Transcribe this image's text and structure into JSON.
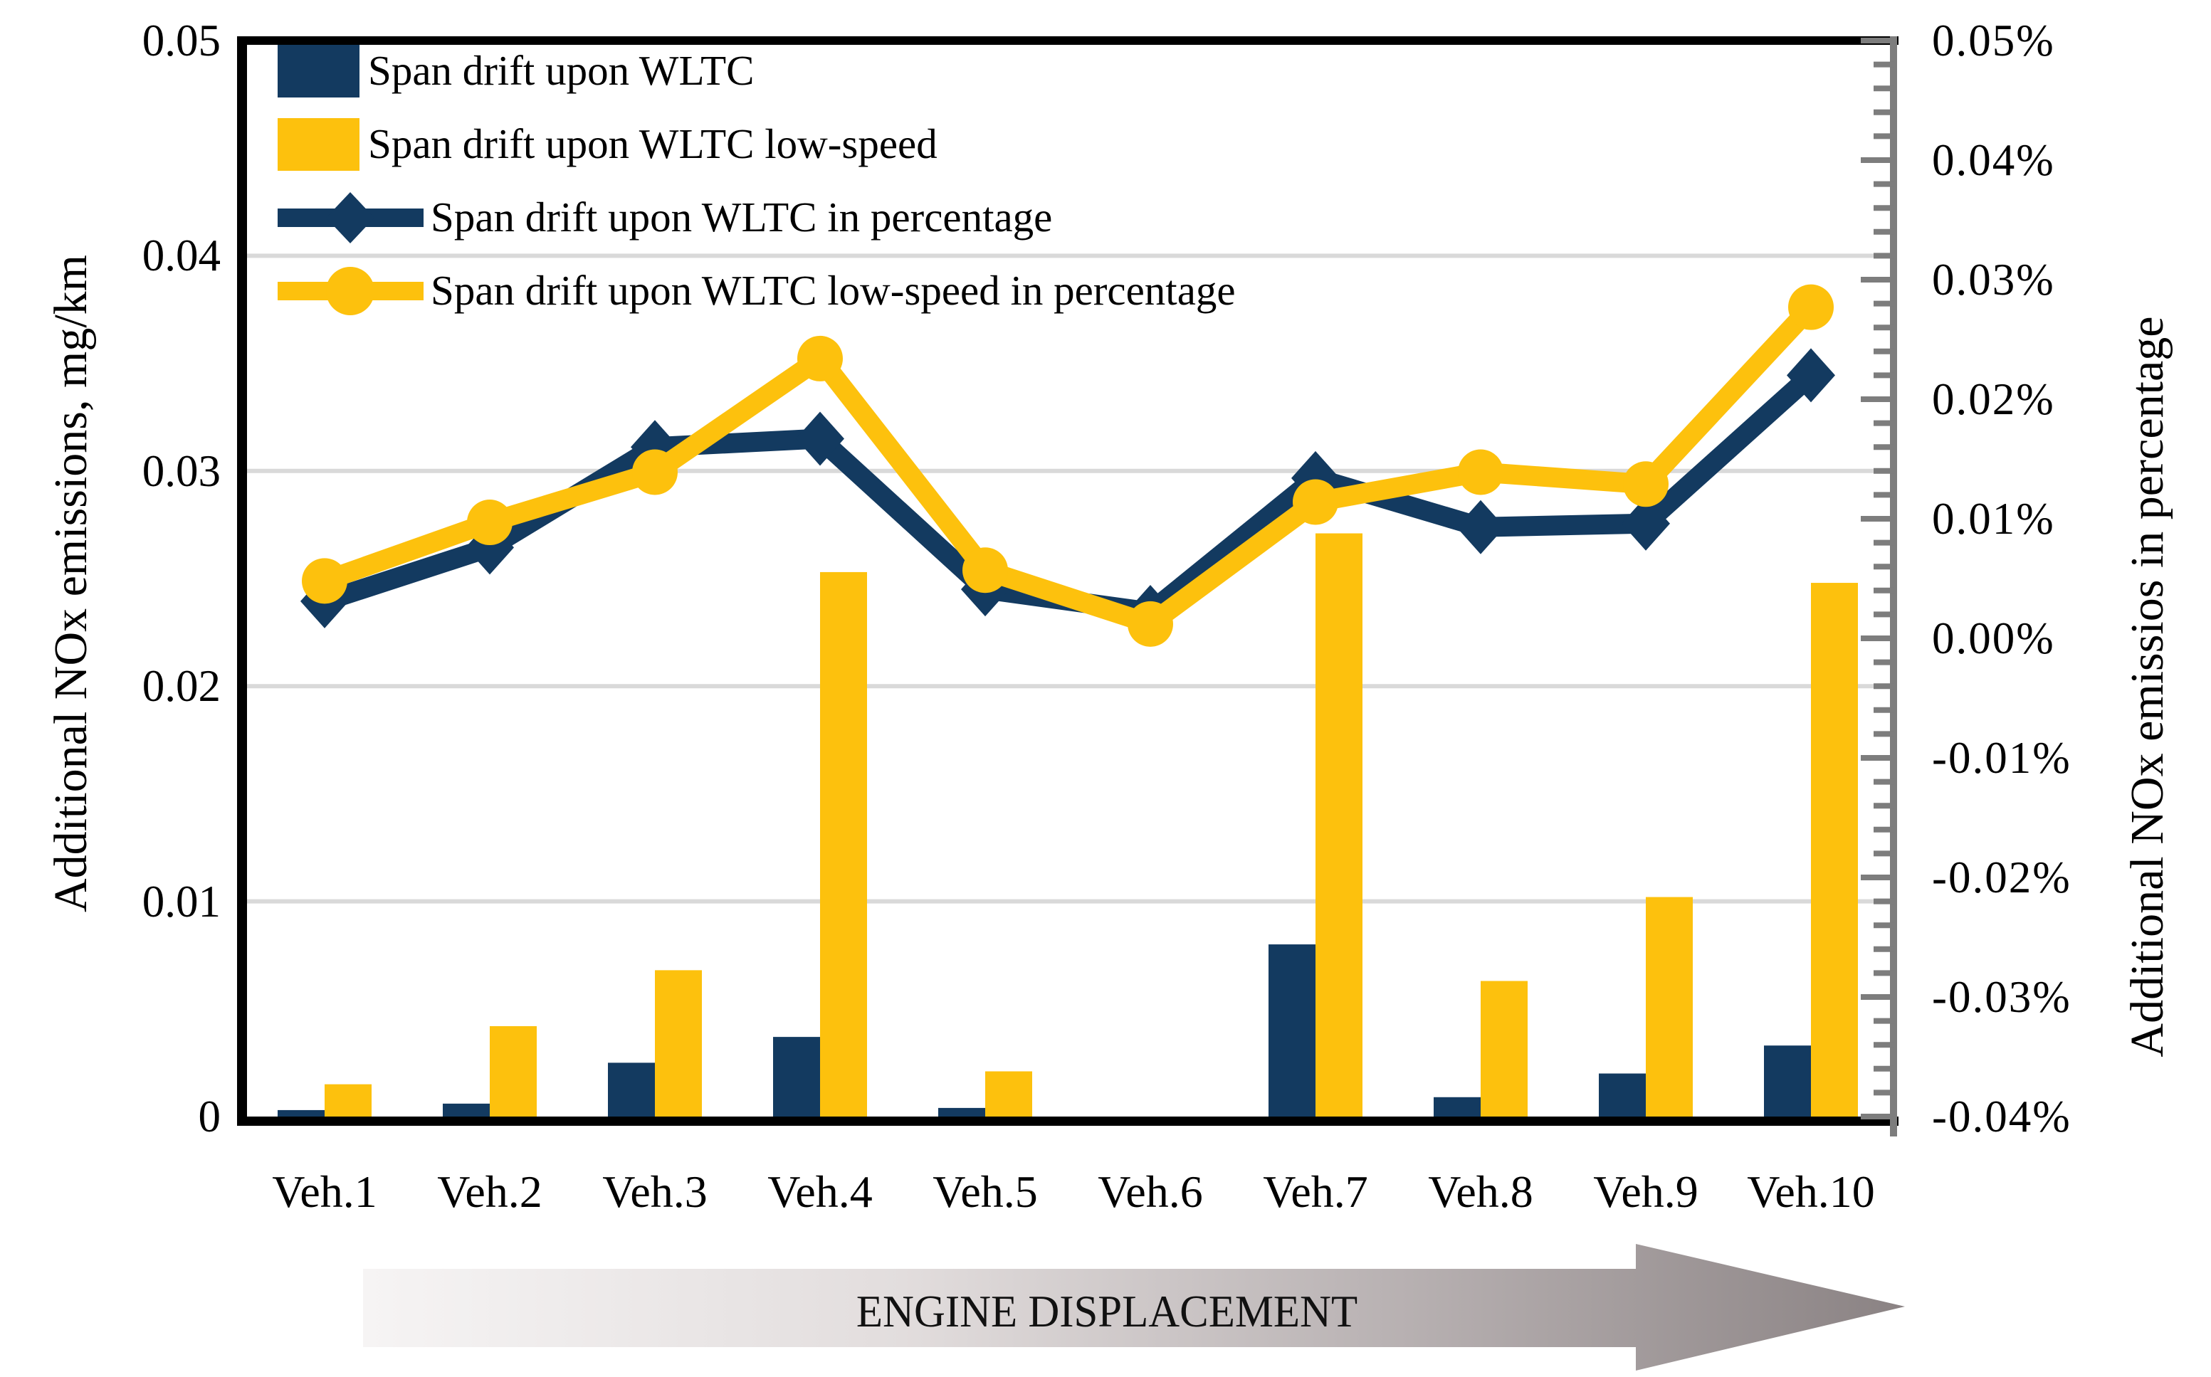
{
  "chart_data": {
    "type": "bar",
    "subtype": "combo-bar-line-dual-axis",
    "categories": [
      "Veh.1",
      "Veh.2",
      "Veh.3",
      "Veh.4",
      "Veh.5",
      "Veh.6",
      "Veh.7",
      "Veh.8",
      "Veh.9",
      "Veh.10"
    ],
    "series": [
      {
        "name": "Span drift upon WLTC",
        "type": "bar",
        "axis": "left",
        "marker": "square",
        "color": "#133A60",
        "values": [
          0.0003,
          0.0006,
          0.0025,
          0.0037,
          0.0004,
          0,
          0.008,
          0.0009,
          0.002,
          0.0033
        ]
      },
      {
        "name": "Span drift upon WLTC low-speed",
        "type": "bar",
        "axis": "left",
        "marker": "square",
        "color": "#FDC10D",
        "values": [
          0.0015,
          0.0042,
          0.0068,
          0.0253,
          0.0021,
          0,
          0.0271,
          0.0063,
          0.0102,
          0.0248
        ]
      },
      {
        "name": "Span drift upon WLTC in percentage",
        "type": "line",
        "axis": "right",
        "marker": "diamond",
        "color": "#133A60",
        "values": [
          0.0031,
          0.0076,
          0.016,
          0.0167,
          0.0041,
          0.0022,
          0.0134,
          0.0093,
          0.0096,
          0.022
        ]
      },
      {
        "name": "Span drift upon WLTC low-speed in percentage",
        "type": "line",
        "axis": "right",
        "marker": "circle",
        "color": "#FDC10D",
        "values": [
          0.0048,
          0.0097,
          0.0139,
          0.0234,
          0.0057,
          0.0012,
          0.0114,
          0.0139,
          0.0129,
          0.0277
        ]
      }
    ],
    "left_axis": {
      "label": "Additional NOx emissions, mg/km",
      "min": 0,
      "max": 0.05,
      "ticks": [
        "0.05",
        "0.04",
        "0.03",
        "0.02",
        "0.01",
        "0"
      ],
      "tick_values": [
        0.05,
        0.04,
        0.03,
        0.02,
        0.01,
        0
      ]
    },
    "right_axis": {
      "label": "Additional NOx emissios in percentage",
      "min": -0.04,
      "max": 0.05,
      "ticks": [
        "0.05%",
        "0.04%",
        "0.03%",
        "0.02%",
        "0.01%",
        "0.00%",
        "-0.01%",
        "-0.02%",
        "-0.03%",
        "-0.04%"
      ],
      "tick_values": [
        0.05,
        0.04,
        0.03,
        0.02,
        0.01,
        0.0,
        -0.01,
        -0.02,
        -0.03,
        -0.04
      ],
      "minor_tick_step": 0.002
    },
    "x_axis_annotation": "ENGINE DISPLACEMENT",
    "grid": "horizontal",
    "gridline_color": "#D9D9D9",
    "right_axis_color": "#7D7D7D",
    "frame_color": "#000000",
    "legend_position": "top-left-inside"
  }
}
